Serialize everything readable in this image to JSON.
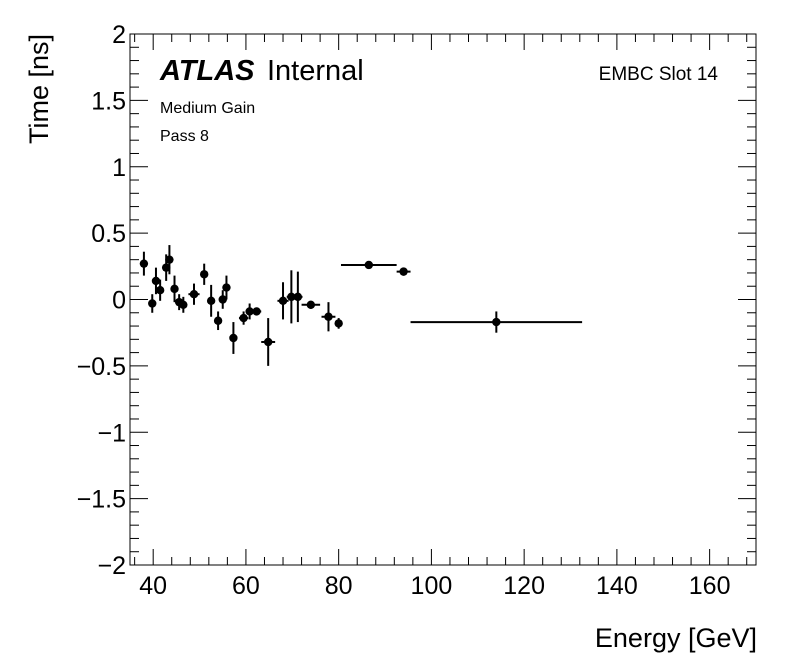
{
  "chart_data": {
    "type": "scatter",
    "style": "error-bars",
    "xlabel": "Energy [GeV]",
    "ylabel": "Time [ns]",
    "xlim": [
      35,
      170
    ],
    "ylim": [
      -2,
      2
    ],
    "x_major_ticks": [
      40,
      60,
      80,
      100,
      120,
      140,
      160
    ],
    "x_tick_labels": [
      "40",
      "60",
      "80",
      "100",
      "120",
      "140",
      "160"
    ],
    "y_major_ticks": [
      -2,
      -1.5,
      -1,
      -0.5,
      0,
      0.5,
      1,
      1.5,
      2
    ],
    "y_tick_labels": [
      "−2",
      "−1.5",
      "−1",
      "−0.5",
      "0",
      "0.5",
      "1",
      "1.5",
      "2"
    ],
    "grid": false,
    "annotations": {
      "atlas_label": "ATLAS",
      "atlas_status": "Internal",
      "gain": "Medium Gain",
      "pass": "Pass 8",
      "slot": "EMBC Slot 14"
    },
    "points": [
      {
        "x": 38.0,
        "y": 0.27,
        "xerr": 0.6,
        "yerr": 0.09
      },
      {
        "x": 39.8,
        "y": -0.03,
        "xerr": 0.6,
        "yerr": 0.07
      },
      {
        "x": 40.6,
        "y": 0.14,
        "xerr": 0.6,
        "yerr": 0.1
      },
      {
        "x": 41.5,
        "y": 0.07,
        "xerr": 0.6,
        "yerr": 0.08
      },
      {
        "x": 42.8,
        "y": 0.24,
        "xerr": 0.6,
        "yerr": 0.1
      },
      {
        "x": 43.5,
        "y": 0.3,
        "xerr": 0.6,
        "yerr": 0.11
      },
      {
        "x": 44.6,
        "y": 0.08,
        "xerr": 0.6,
        "yerr": 0.1
      },
      {
        "x": 45.6,
        "y": -0.02,
        "xerr": 0.6,
        "yerr": 0.06
      },
      {
        "x": 46.5,
        "y": -0.04,
        "xerr": 0.6,
        "yerr": 0.06
      },
      {
        "x": 48.8,
        "y": 0.04,
        "xerr": 1.2,
        "yerr": 0.08
      },
      {
        "x": 51.0,
        "y": 0.19,
        "xerr": 0.6,
        "yerr": 0.08
      },
      {
        "x": 52.5,
        "y": -0.01,
        "xerr": 0.6,
        "yerr": 0.12
      },
      {
        "x": 54.0,
        "y": -0.16,
        "xerr": 0.6,
        "yerr": 0.07
      },
      {
        "x": 55.0,
        "y": 0.0,
        "xerr": 0.6,
        "yerr": 0.07
      },
      {
        "x": 55.8,
        "y": 0.09,
        "xerr": 0.6,
        "yerr": 0.09
      },
      {
        "x": 57.3,
        "y": -0.29,
        "xerr": 0.6,
        "yerr": 0.12
      },
      {
        "x": 59.5,
        "y": -0.14,
        "xerr": 1.0,
        "yerr": 0.05
      },
      {
        "x": 60.8,
        "y": -0.09,
        "xerr": 0.6,
        "yerr": 0.06
      },
      {
        "x": 62.3,
        "y": -0.09,
        "xerr": 1.0,
        "yerr": 0.03
      },
      {
        "x": 64.8,
        "y": -0.32,
        "xerr": 1.5,
        "yerr": 0.18
      },
      {
        "x": 68.0,
        "y": -0.01,
        "xerr": 1.2,
        "yerr": 0.14
      },
      {
        "x": 69.8,
        "y": 0.02,
        "xerr": 1.0,
        "yerr": 0.2
      },
      {
        "x": 71.2,
        "y": 0.02,
        "xerr": 1.0,
        "yerr": 0.19
      },
      {
        "x": 74.0,
        "y": -0.04,
        "xerr": 2.0,
        "yerr": 0.03
      },
      {
        "x": 77.8,
        "y": -0.13,
        "xerr": 1.5,
        "yerr": 0.11
      },
      {
        "x": 80.0,
        "y": -0.18,
        "xerr": 0.5,
        "yerr": 0.04
      },
      {
        "x": 86.5,
        "y": 0.26,
        "xerr": 6.0,
        "yerr": 0.02
      },
      {
        "x": 94.0,
        "y": 0.21,
        "xerr": 1.5,
        "yerr": 0.03
      },
      {
        "x": 114.0,
        "y": -0.17,
        "xerr": 18.5,
        "yerr": 0.08
      }
    ]
  }
}
